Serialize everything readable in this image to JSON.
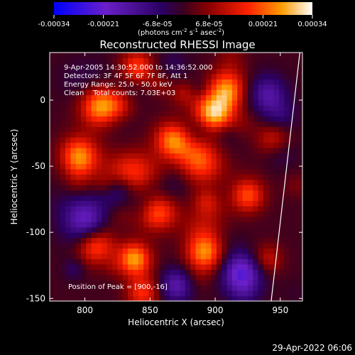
{
  "chart_data": {
    "type": "heatmap",
    "title": "Reconstructed RHESSI Image",
    "xlabel": "Heliocentric X (arcsec)",
    "ylabel": "Heliocentric Y (arcsec)",
    "xlim": [
      773,
      967
    ],
    "ylim": [
      -152,
      36
    ],
    "x_ticks": [
      800,
      850,
      900,
      950
    ],
    "y_ticks": [
      0,
      -50,
      -100,
      -150
    ],
    "colorbar": {
      "ticks": [
        -0.00034,
        -0.00021,
        -6.8e-05,
        6.8e-05,
        0.00021,
        0.00034
      ],
      "tick_labels": [
        "-0.00034",
        "-0.00021",
        "-6.8e-05",
        "6.8e-05",
        "0.00021",
        "0.00034"
      ],
      "units_prefix": "(photons cm",
      "units_sup1": "-2",
      "units_mid1": " s",
      "units_sup2": "-1",
      "units_mid2": " asec",
      "units_sup3": "-2",
      "units_suffix": ")",
      "colors": [
        "#0000ff",
        "#6a1fc8",
        "#2a0060",
        "#8a0000",
        "#ff2000",
        "#ff9a00",
        "#ffffff"
      ],
      "range": [
        -0.00034,
        0.00034
      ]
    },
    "annotations": [
      "9-Apr-2005 14:30:52.000 to 14:36:52.000",
      "Detectors: 3F 4F 5F 6F 7F 8F, Att 1",
      "Energy Range: 25.0 - 50.0 keV",
      "Clean    Total counts: 7.03E+03",
      "Position of Peak = [900,-16]"
    ],
    "peak": {
      "x": 900,
      "y": -16
    },
    "limb_line": [
      [
        965,
        36
      ],
      [
        943,
        -152
      ]
    ],
    "pixel_size_arcsec": 4,
    "bright_sources": [
      {
        "x": 898,
        "y": -12,
        "amp": 1.0,
        "sigma": 11
      },
      {
        "x": 908,
        "y": 12,
        "amp": 0.55,
        "sigma": 10
      },
      {
        "x": 868,
        "y": -30,
        "amp": 0.7,
        "sigma": 10
      },
      {
        "x": 888,
        "y": -45,
        "amp": 0.6,
        "sigma": 12
      },
      {
        "x": 840,
        "y": 25,
        "amp": 0.55,
        "sigma": 9
      },
      {
        "x": 812,
        "y": -5,
        "amp": 0.6,
        "sigma": 11
      },
      {
        "x": 795,
        "y": -40,
        "amp": 0.55,
        "sigma": 10
      },
      {
        "x": 840,
        "y": -55,
        "amp": 0.45,
        "sigma": 12
      },
      {
        "x": 855,
        "y": -85,
        "amp": 0.5,
        "sigma": 10
      },
      {
        "x": 808,
        "y": -110,
        "amp": 0.55,
        "sigma": 10
      },
      {
        "x": 838,
        "y": -120,
        "amp": 0.75,
        "sigma": 9
      },
      {
        "x": 892,
        "y": -115,
        "amp": 0.7,
        "sigma": 10
      },
      {
        "x": 925,
        "y": -72,
        "amp": 0.55,
        "sigma": 9
      },
      {
        "x": 945,
        "y": -30,
        "amp": 0.45,
        "sigma": 9
      },
      {
        "x": 845,
        "y": -145,
        "amp": 0.45,
        "sigma": 9
      },
      {
        "x": 940,
        "y": -120,
        "amp": 0.35,
        "sigma": 8
      }
    ],
    "negative_sources": [
      {
        "x": 800,
        "y": -90,
        "amp": 0.55,
        "sigma": 12
      },
      {
        "x": 920,
        "y": -130,
        "amp": 0.7,
        "sigma": 11
      },
      {
        "x": 940,
        "y": 5,
        "amp": 0.45,
        "sigma": 10
      },
      {
        "x": 870,
        "y": -140,
        "amp": 0.5,
        "sigma": 9
      },
      {
        "x": 825,
        "y": -70,
        "amp": 0.4,
        "sigma": 10
      }
    ]
  },
  "footer": {
    "timestamp": "29-Apr-2022 06:06"
  }
}
